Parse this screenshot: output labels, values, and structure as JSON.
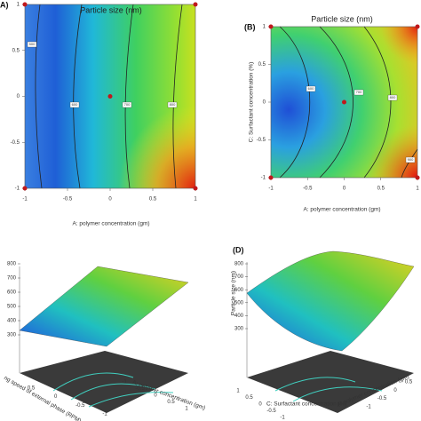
{
  "chart_data": [
    {
      "type": "contour",
      "panel_label": "A)",
      "title": "Particle size (nm)",
      "xlabel": "A: polymer concentration (gm)",
      "xlim": [
        -1,
        1
      ],
      "ylim": [
        -1,
        1
      ],
      "xticks": [
        -1,
        -0.5,
        0,
        0.5,
        1
      ],
      "yticks": [
        1,
        0.5,
        0,
        -0.5,
        -1
      ],
      "contour_levels": [
        500,
        600,
        700,
        800
      ],
      "points": {
        "x": [
          -1,
          1,
          -1,
          1,
          0
        ],
        "y": [
          1,
          1,
          -1,
          -1,
          0
        ],
        "color": "#c0181c"
      }
    },
    {
      "type": "contour",
      "panel_label": "(B)",
      "title": "Particle size (nm)",
      "xlabel": "A: polymer concentration (gm)",
      "ylabel": "C: Surfactant concentration (%)",
      "xlim": [
        -1,
        1
      ],
      "ylim": [
        -1,
        1
      ],
      "xticks": [
        -1,
        -0.5,
        0,
        0.5,
        1
      ],
      "yticks": [
        1,
        0.5,
        0,
        -0.5,
        -1
      ],
      "contour_levels": [
        600,
        700,
        800,
        900
      ],
      "points": {
        "x": [
          -1,
          1,
          -1,
          1,
          0
        ],
        "y": [
          1,
          1,
          -1,
          -1,
          0
        ],
        "color": "#c0181c"
      }
    },
    {
      "type": "surface",
      "zlabel": "",
      "xlabel": "A: polymer concentration (gm)",
      "ylabel": "ng speed of external phase (RPM)",
      "zticks": [
        800,
        700,
        600,
        500,
        400,
        300
      ],
      "xticks": [
        -1,
        -0.5,
        0,
        0.5,
        1
      ],
      "yticks": [
        0.5,
        0,
        -0.5,
        -1
      ]
    },
    {
      "type": "surface",
      "panel_label": "(D)",
      "zlabel": "Particle size (nm)",
      "xlabel": "A: polymer concentration (gm)",
      "ylabel": "C: Surfactant concentration (%)",
      "zticks": [
        800,
        700,
        600,
        500,
        400,
        300
      ],
      "xticks": [
        -1,
        -0.5,
        0,
        0.5
      ],
      "yticks": [
        1,
        0.5,
        0,
        -0.5,
        -1
      ]
    }
  ]
}
